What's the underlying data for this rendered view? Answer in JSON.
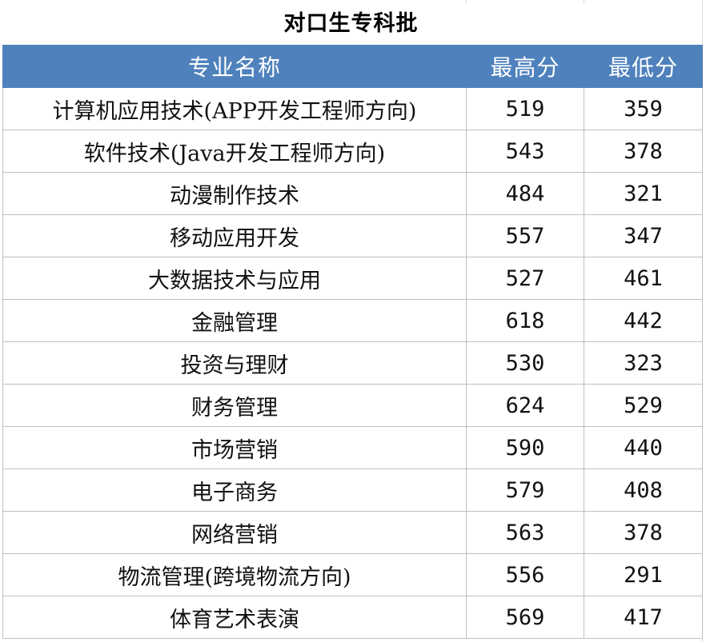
{
  "title": "对口生专科批",
  "header": {
    "major": "专业名称",
    "max": "最高分",
    "min": "最低分"
  },
  "rows": [
    {
      "major": "计算机应用技术(APP开发工程师方向)",
      "max": "519",
      "min": "359"
    },
    {
      "major": "软件技术(Java开发工程师方向)",
      "max": "543",
      "min": "378"
    },
    {
      "major": "动漫制作技术",
      "max": "484",
      "min": "321"
    },
    {
      "major": "移动应用开发",
      "max": "557",
      "min": "347"
    },
    {
      "major": "大数据技术与应用",
      "max": "527",
      "min": "461"
    },
    {
      "major": "金融管理",
      "max": "618",
      "min": "442"
    },
    {
      "major": "投资与理财",
      "max": "530",
      "min": "323"
    },
    {
      "major": "财务管理",
      "max": "624",
      "min": "529"
    },
    {
      "major": "市场营销",
      "max": "590",
      "min": "440"
    },
    {
      "major": "电子商务",
      "max": "579",
      "min": "408"
    },
    {
      "major": "网络营销",
      "max": "563",
      "min": "378"
    },
    {
      "major": "物流管理(跨境物流方向)",
      "max": "556",
      "min": "291"
    },
    {
      "major": "体育艺术表演",
      "max": "569",
      "min": "417"
    }
  ],
  "colors": {
    "header_bg": "#4f81bd",
    "header_text": "#ffffff",
    "grid": "#bfbfbf"
  }
}
